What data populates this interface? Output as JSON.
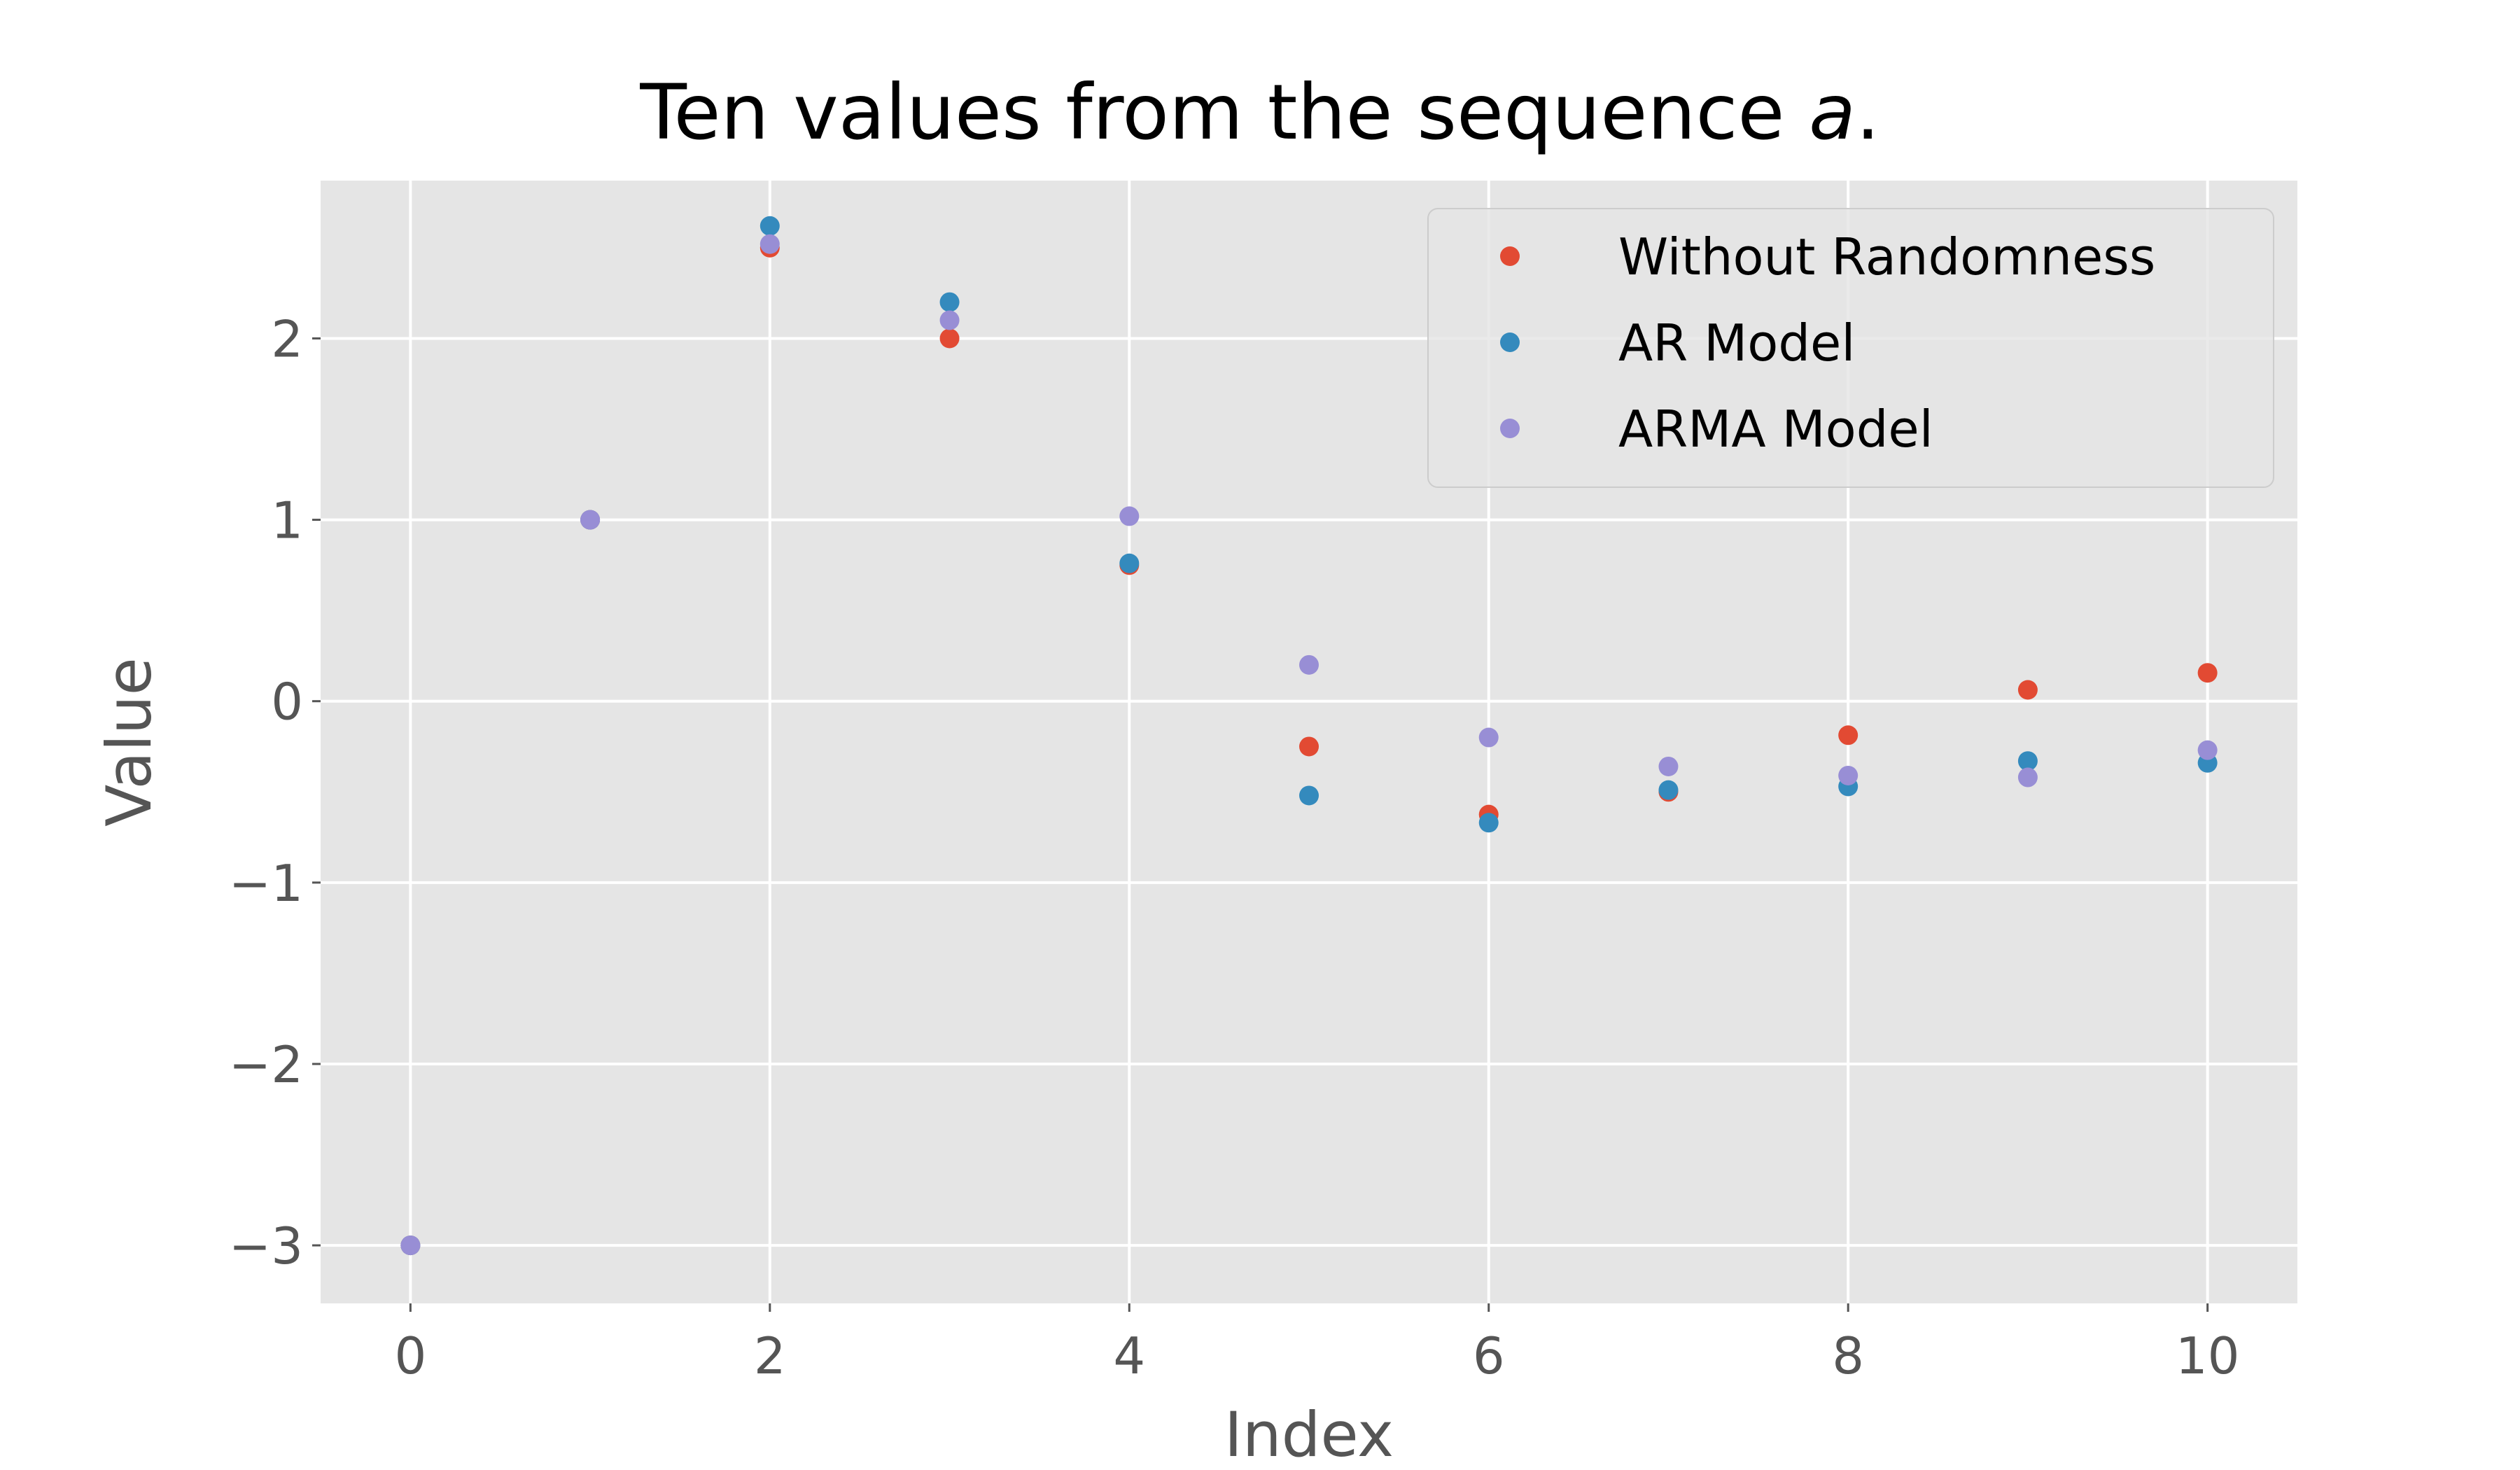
{
  "chart_data": {
    "type": "scatter",
    "title": {
      "main": "Ten values from the sequence ",
      "italic": "a",
      "suffix": "."
    },
    "xlabel": "Index",
    "ylabel": "Value",
    "xlim": [
      -0.5,
      10.5
    ],
    "ylim": [
      -3.32,
      2.87
    ],
    "xticks": [
      0,
      2,
      4,
      6,
      8,
      10
    ],
    "xtick_labels": [
      "0",
      "2",
      "4",
      "6",
      "8",
      "10"
    ],
    "yticks": [
      -3,
      -2,
      -1,
      0,
      1,
      2
    ],
    "ytick_labels": [
      "−3",
      "−2",
      "−1",
      "0",
      "1",
      "2"
    ],
    "grid": true,
    "legend_position": "top-right",
    "x": [
      0,
      1,
      2,
      3,
      4,
      5,
      6,
      7,
      8,
      9,
      10
    ],
    "series": [
      {
        "name": "Without Randomness",
        "color": "#E24A33",
        "values": [
          -3.0,
          1.0,
          2.5,
          2.0,
          0.75,
          -0.25,
          -0.625,
          -0.5,
          -0.1875,
          0.0625,
          0.15625
        ]
      },
      {
        "name": "AR Model",
        "color": "#348ABD",
        "values": [
          -3.0,
          1.0,
          2.62,
          2.2,
          0.76,
          -0.52,
          -0.67,
          -0.49,
          -0.47,
          -0.33,
          -0.34
        ]
      },
      {
        "name": "ARMA Model",
        "color": "#988ED5",
        "values": [
          -3.0,
          1.0,
          2.52,
          2.1,
          1.02,
          0.2,
          -0.2,
          -0.36,
          -0.41,
          -0.42,
          -0.27
        ]
      }
    ]
  }
}
